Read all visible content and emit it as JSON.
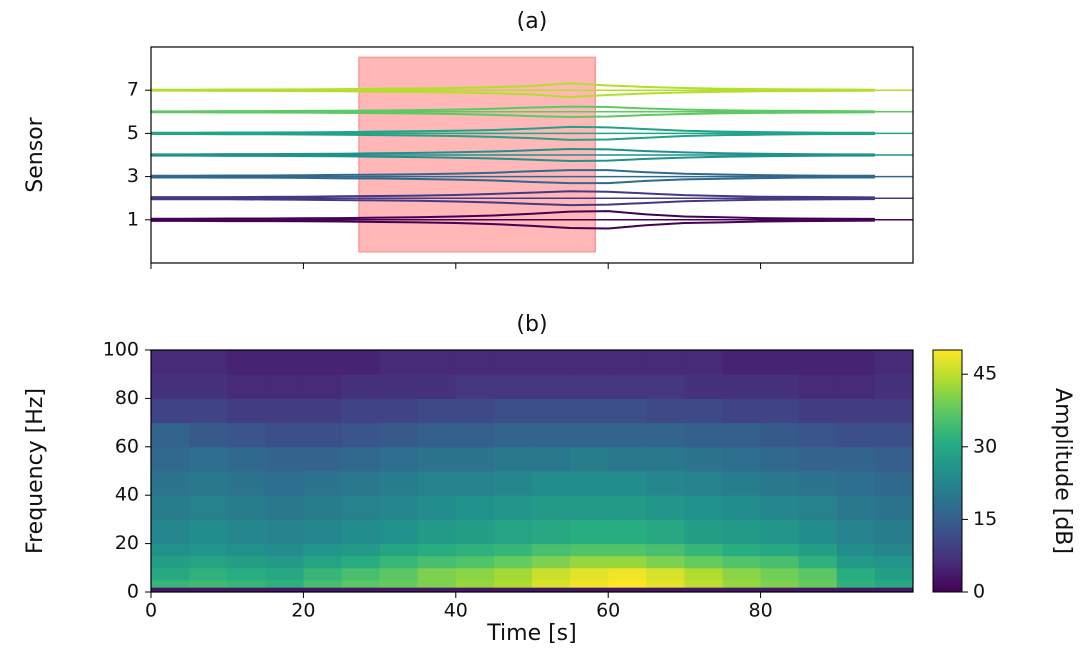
{
  "chart_data": [
    {
      "type": "waveform",
      "title": "(a)",
      "y_label": "Sensor",
      "xlim": [
        0,
        100
      ],
      "xticks": [
        0,
        20,
        40,
        60,
        80
      ],
      "ylim": [
        -1,
        9
      ],
      "yticks": [
        1,
        3,
        5,
        7
      ],
      "highlight": {
        "x": [
          27.3,
          58.3
        ],
        "y": [
          -0.48,
          8.52
        ],
        "color": "#ff9999"
      },
      "x": [
        0,
        5,
        10,
        15,
        20,
        25,
        30,
        35,
        40,
        45,
        50,
        55,
        60,
        65,
        70,
        75,
        80,
        85,
        90,
        95
      ],
      "series": [
        {
          "y": 1,
          "color": "#440154",
          "values": [
            0.05,
            0.05,
            0.06,
            0.06,
            0.07,
            0.08,
            0.1,
            0.12,
            0.15,
            0.2,
            0.28,
            0.38,
            0.4,
            0.25,
            0.15,
            0.12,
            0.08,
            0.06,
            0.05,
            0.04
          ]
        },
        {
          "y": 2,
          "color": "#443a83",
          "values": [
            0.05,
            0.05,
            0.05,
            0.06,
            0.07,
            0.09,
            0.1,
            0.12,
            0.15,
            0.2,
            0.26,
            0.32,
            0.3,
            0.22,
            0.14,
            0.1,
            0.07,
            0.06,
            0.05,
            0.04
          ]
        },
        {
          "y": 3,
          "color": "#31688e",
          "values": [
            0.04,
            0.04,
            0.05,
            0.05,
            0.06,
            0.08,
            0.09,
            0.11,
            0.14,
            0.18,
            0.25,
            0.3,
            0.3,
            0.2,
            0.13,
            0.1,
            0.07,
            0.05,
            0.04,
            0.04
          ]
        },
        {
          "y": 4,
          "color": "#21918c",
          "values": [
            0.03,
            0.03,
            0.04,
            0.04,
            0.05,
            0.06,
            0.08,
            0.1,
            0.13,
            0.16,
            0.22,
            0.28,
            0.26,
            0.18,
            0.12,
            0.08,
            0.06,
            0.04,
            0.03,
            0.03
          ]
        },
        {
          "y": 5,
          "color": "#20a386",
          "values": [
            0.03,
            0.03,
            0.04,
            0.04,
            0.05,
            0.06,
            0.08,
            0.1,
            0.12,
            0.16,
            0.22,
            0.3,
            0.28,
            0.2,
            0.12,
            0.08,
            0.06,
            0.04,
            0.03,
            0.03
          ]
        },
        {
          "y": 6,
          "color": "#5ec962",
          "values": [
            0.02,
            0.02,
            0.03,
            0.03,
            0.04,
            0.05,
            0.06,
            0.08,
            0.1,
            0.14,
            0.2,
            0.24,
            0.22,
            0.15,
            0.1,
            0.07,
            0.05,
            0.04,
            0.03,
            0.02
          ]
        },
        {
          "y": 7,
          "color": "#b4de2c",
          "values": [
            0.02,
            0.02,
            0.03,
            0.03,
            0.04,
            0.05,
            0.07,
            0.08,
            0.1,
            0.14,
            0.2,
            0.32,
            0.22,
            0.15,
            0.1,
            0.07,
            0.05,
            0.04,
            0.03,
            0.02
          ]
        }
      ]
    },
    {
      "type": "spectrogram",
      "title": "(b)",
      "x_label": "Time [s]",
      "y_label": "Frequency [Hz]",
      "xlim": [
        0,
        100
      ],
      "xticks": [
        0,
        20,
        40,
        60,
        80
      ],
      "ylim": [
        0,
        100
      ],
      "yticks": [
        0,
        20,
        40,
        60,
        80,
        100
      ],
      "cmap": "viridis",
      "colorbar_label": "Amplitude [dB]",
      "clim": [
        0,
        50
      ],
      "cticks": [
        0,
        15,
        30,
        45
      ],
      "x": [
        0,
        5,
        10,
        15,
        20,
        25,
        30,
        35,
        40,
        45,
        50,
        55,
        60,
        65,
        70,
        75,
        80,
        85,
        90,
        95,
        100
      ],
      "y": [
        0,
        2,
        5,
        10,
        15,
        20,
        30,
        40,
        50,
        60,
        70,
        80,
        90,
        100
      ],
      "values": [
        [
          3,
          3,
          3,
          3,
          3,
          3,
          3,
          3,
          3,
          3,
          3,
          3,
          3,
          3,
          3,
          3,
          3,
          3,
          3,
          3
        ],
        [
          33,
          34,
          33,
          32,
          35,
          37,
          38,
          40,
          42,
          44,
          47,
          49,
          50,
          48,
          45,
          42,
          40,
          38,
          32,
          30
        ],
        [
          30,
          32,
          31,
          30,
          33,
          35,
          37,
          40,
          41,
          43,
          46,
          48,
          49,
          47,
          44,
          41,
          39,
          37,
          31,
          28
        ],
        [
          28,
          29,
          28,
          27,
          29,
          31,
          33,
          35,
          36,
          38,
          40,
          42,
          42,
          40,
          38,
          36,
          35,
          32,
          27,
          26
        ],
        [
          25,
          26,
          25,
          24,
          26,
          27,
          29,
          31,
          32,
          33,
          35,
          36,
          36,
          35,
          33,
          31,
          30,
          28,
          24,
          23
        ],
        [
          23,
          24,
          23,
          22,
          23,
          24,
          25,
          27,
          28,
          29,
          30,
          31,
          31,
          30,
          28,
          27,
          26,
          24,
          22,
          21
        ],
        [
          21,
          22,
          21,
          20,
          21,
          22,
          23,
          24,
          25,
          26,
          27,
          27,
          27,
          26,
          25,
          24,
          23,
          22,
          20,
          19
        ],
        [
          19,
          20,
          19,
          18,
          19,
          20,
          21,
          22,
          22,
          23,
          24,
          24,
          24,
          23,
          22,
          21,
          20,
          19,
          18,
          17
        ],
        [
          17,
          18,
          17,
          16,
          16,
          17,
          18,
          19,
          19,
          20,
          20,
          21,
          20,
          20,
          19,
          18,
          17,
          16,
          16,
          15
        ],
        [
          16,
          14,
          13,
          12,
          12,
          13,
          14,
          15,
          15,
          16,
          16,
          16,
          16,
          16,
          15,
          15,
          14,
          13,
          12,
          12
        ],
        [
          10,
          10,
          9,
          9,
          9,
          10,
          10,
          11,
          11,
          12,
          12,
          12,
          12,
          11,
          11,
          10,
          10,
          9,
          9,
          9
        ],
        [
          7,
          7,
          6,
          6,
          6,
          7,
          7,
          7,
          8,
          8,
          8,
          8,
          8,
          8,
          7,
          7,
          7,
          6,
          6,
          7
        ],
        [
          6,
          6,
          5,
          5,
          5,
          5,
          6,
          6,
          6,
          6,
          6,
          6,
          6,
          6,
          6,
          5,
          5,
          5,
          5,
          6
        ]
      ]
    }
  ]
}
